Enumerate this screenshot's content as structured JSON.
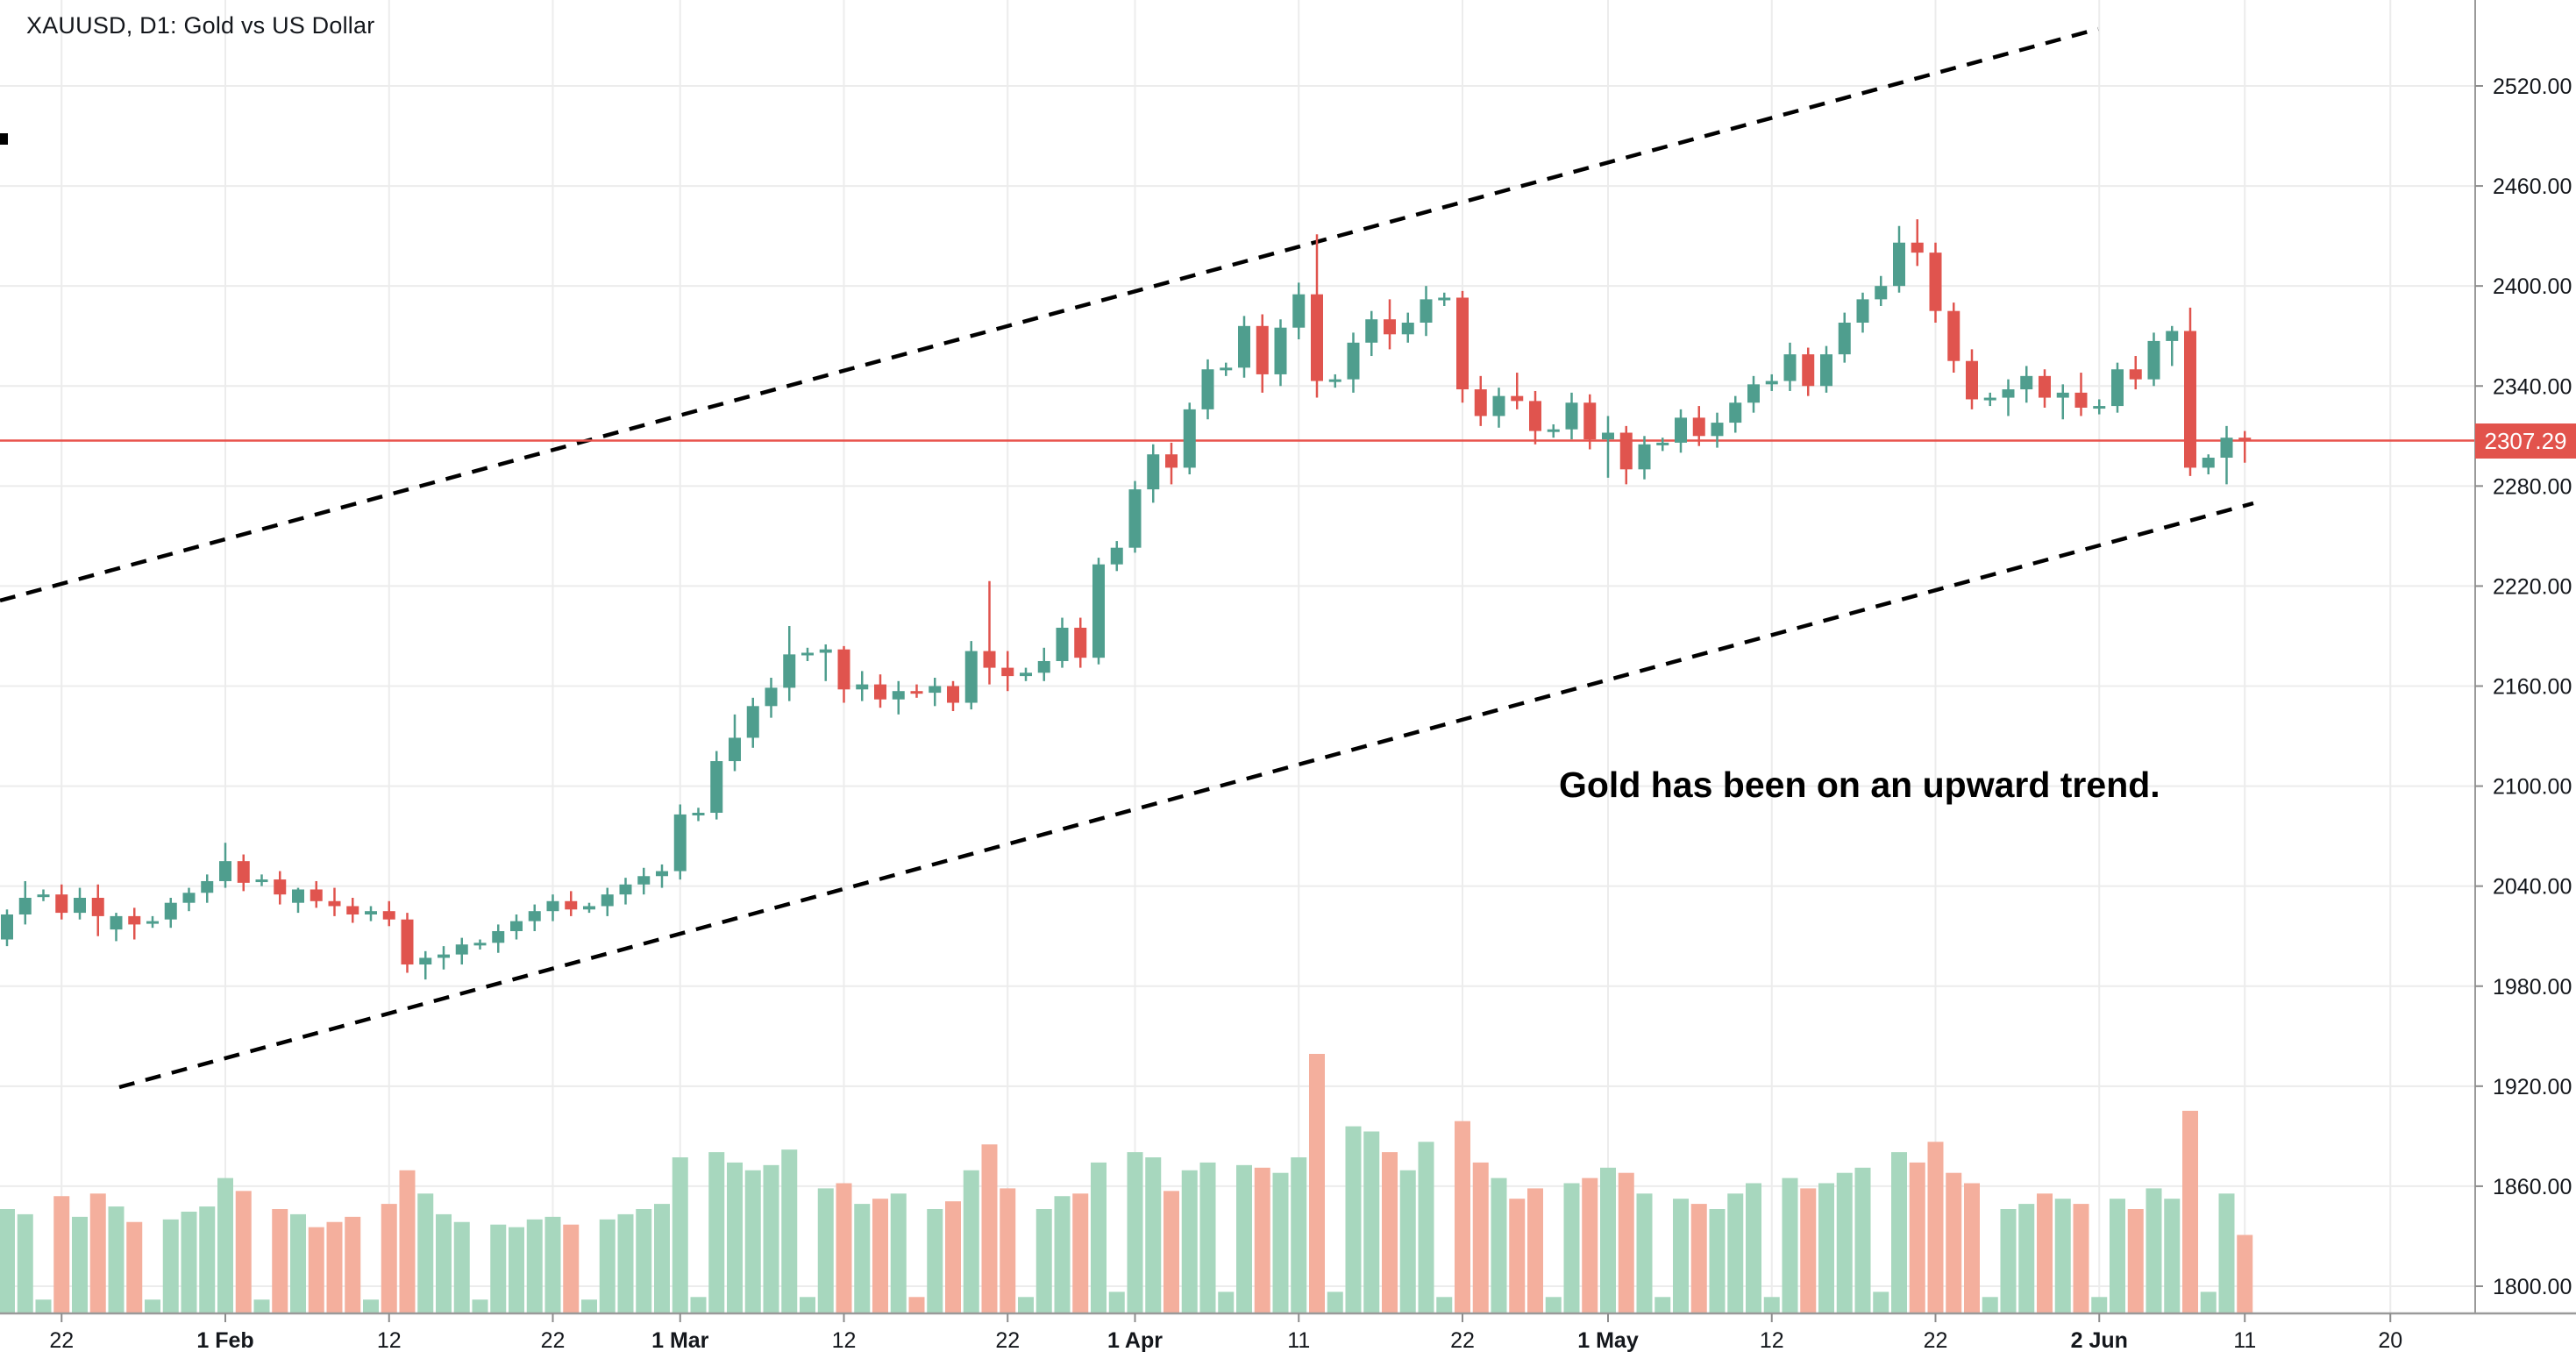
{
  "header": {
    "title": "XAUUSD, D1: Gold vs US Dollar"
  },
  "annotation": {
    "text": "Gold has been on an upward trend."
  },
  "price_axis": {
    "current": {
      "text": "2307.29",
      "value": 2307.29
    },
    "labels": [
      {
        "text": "2520.00",
        "value": 2520
      },
      {
        "text": "2460.00",
        "value": 2460
      },
      {
        "text": "2400.00",
        "value": 2400
      },
      {
        "text": "2340.00",
        "value": 2340
      },
      {
        "text": "2280.00",
        "value": 2280
      },
      {
        "text": "2220.00",
        "value": 2220
      },
      {
        "text": "2160.00",
        "value": 2160
      },
      {
        "text": "2100.00",
        "value": 2100
      },
      {
        "text": "2040.00",
        "value": 2040
      },
      {
        "text": "1980.00",
        "value": 1980
      },
      {
        "text": "1920.00",
        "value": 1920
      },
      {
        "text": "1860.00",
        "value": 1860
      },
      {
        "text": "1800.00",
        "value": 1800
      }
    ]
  },
  "time_axis": {
    "ticks": [
      {
        "label": "22",
        "index": 3,
        "bold": false
      },
      {
        "label": "1 Feb",
        "index": 12,
        "bold": true
      },
      {
        "label": "12",
        "index": 21,
        "bold": false
      },
      {
        "label": "22",
        "index": 30,
        "bold": false
      },
      {
        "label": "1 Mar",
        "index": 37,
        "bold": true
      },
      {
        "label": "12",
        "index": 46,
        "bold": false
      },
      {
        "label": "22",
        "index": 55,
        "bold": false
      },
      {
        "label": "1 Apr",
        "index": 62,
        "bold": true
      },
      {
        "label": "11",
        "index": 71,
        "bold": false
      },
      {
        "label": "22",
        "index": 80,
        "bold": false
      },
      {
        "label": "1 May",
        "index": 88,
        "bold": true
      },
      {
        "label": "12",
        "index": 97,
        "bold": false
      },
      {
        "label": "22",
        "index": 106,
        "bold": false
      },
      {
        "label": "2 Jun",
        "index": 115,
        "bold": true
      },
      {
        "label": "11",
        "index": 123,
        "bold": false
      },
      {
        "label": "20",
        "index": 131,
        "bold": false
      }
    ]
  },
  "chart_data": {
    "type": "candlestick",
    "title": "XAUUSD, D1: Gold vs US Dollar",
    "series_note": "OHLC + volume per bar, Sundays appear as tiny-volume bars",
    "ylim": [
      1790,
      2560
    ],
    "grid": true,
    "colors": {
      "up": "#4F9E8E",
      "down": "#E0544E",
      "vol_up": "#A7D7BE",
      "vol_down": "#F4AF9D",
      "grid": "#ECECEC",
      "axis": "#9A9A9A",
      "tick": "#8C8C8C",
      "price_line": "#E8524C",
      "badge": "#E2534C",
      "text": "#14171c",
      "trendline": "#000000"
    },
    "candles": [
      [
        2008,
        2026,
        2004,
        2023,
        40
      ],
      [
        2023,
        2043,
        2017,
        2033,
        38
      ],
      [
        2034,
        2038,
        2031,
        2035,
        5
      ],
      [
        2035,
        2041,
        2020,
        2024,
        45
      ],
      [
        2024,
        2039,
        2020,
        2033,
        37
      ],
      [
        2033,
        2041,
        2010,
        2022,
        46
      ],
      [
        2014,
        2024,
        2007,
        2022,
        41
      ],
      [
        2022,
        2027,
        2008,
        2017,
        35
      ],
      [
        2018,
        2022,
        2015,
        2019,
        5
      ],
      [
        2020,
        2033,
        2015,
        2030,
        36
      ],
      [
        2030,
        2039,
        2025,
        2036,
        39
      ],
      [
        2036,
        2047,
        2030,
        2043,
        41
      ],
      [
        2043,
        2066,
        2039,
        2055,
        52
      ],
      [
        2055,
        2059,
        2037,
        2042,
        47
      ],
      [
        2043,
        2047,
        2040,
        2044,
        5
      ],
      [
        2044,
        2049,
        2029,
        2035,
        40
      ],
      [
        2030,
        2039,
        2024,
        2038,
        38
      ],
      [
        2038,
        2043,
        2027,
        2031,
        33
      ],
      [
        2031,
        2039,
        2022,
        2028,
        35
      ],
      [
        2028,
        2033,
        2018,
        2023,
        37
      ],
      [
        2023,
        2028,
        2019,
        2025,
        5
      ],
      [
        2025,
        2031,
        2016,
        2020,
        42
      ],
      [
        2020,
        2024,
        1988,
        1993,
        55
      ],
      [
        1993,
        2001,
        1984,
        1997,
        46
      ],
      [
        1997,
        2004,
        1990,
        1999,
        38
      ],
      [
        1999,
        2009,
        1993,
        2005,
        35
      ],
      [
        2005,
        2008,
        2002,
        2006,
        5
      ],
      [
        2006,
        2017,
        2000,
        2013,
        34
      ],
      [
        2013,
        2023,
        2008,
        2019,
        33
      ],
      [
        2019,
        2029,
        2013,
        2025,
        36
      ],
      [
        2025,
        2035,
        2019,
        2031,
        37
      ],
      [
        2031,
        2037,
        2022,
        2026,
        34
      ],
      [
        2026,
        2030,
        2024,
        2028,
        5
      ],
      [
        2028,
        2039,
        2022,
        2035,
        36
      ],
      [
        2035,
        2045,
        2029,
        2041,
        38
      ],
      [
        2041,
        2051,
        2035,
        2046,
        40
      ],
      [
        2046,
        2053,
        2039,
        2049,
        42
      ],
      [
        2049,
        2089,
        2044,
        2083,
        60
      ],
      [
        2083,
        2087,
        2079,
        2084,
        6
      ],
      [
        2084,
        2121,
        2080,
        2115,
        62
      ],
      [
        2115,
        2143,
        2109,
        2129,
        58
      ],
      [
        2129,
        2153,
        2123,
        2148,
        55
      ],
      [
        2148,
        2165,
        2141,
        2159,
        57
      ],
      [
        2159,
        2196,
        2151,
        2179,
        63
      ],
      [
        2179,
        2183,
        2175,
        2180,
        6
      ],
      [
        2180,
        2185,
        2163,
        2182,
        48
      ],
      [
        2182,
        2184,
        2150,
        2158,
        50
      ],
      [
        2158,
        2169,
        2151,
        2161,
        42
      ],
      [
        2161,
        2167,
        2147,
        2152,
        44
      ],
      [
        2152,
        2163,
        2143,
        2157,
        46
      ],
      [
        2157,
        2161,
        2153,
        2156,
        6
      ],
      [
        2156,
        2165,
        2148,
        2160,
        40
      ],
      [
        2160,
        2163,
        2145,
        2150,
        43
      ],
      [
        2150,
        2187,
        2146,
        2181,
        55
      ],
      [
        2181,
        2223,
        2161,
        2171,
        65
      ],
      [
        2171,
        2181,
        2157,
        2166,
        48
      ],
      [
        2166,
        2171,
        2163,
        2168,
        6
      ],
      [
        2168,
        2183,
        2163,
        2175,
        40
      ],
      [
        2175,
        2201,
        2171,
        2195,
        45
      ],
      [
        2195,
        2201,
        2171,
        2177,
        46
      ],
      [
        2177,
        2237,
        2173,
        2233,
        58
      ],
      [
        2233,
        2247,
        2229,
        2243,
        8
      ],
      [
        2243,
        2283,
        2240,
        2278,
        62
      ],
      [
        2278,
        2305,
        2270,
        2299,
        60
      ],
      [
        2299,
        2306,
        2281,
        2291,
        47
      ],
      [
        2291,
        2330,
        2287,
        2326,
        55
      ],
      [
        2326,
        2356,
        2320,
        2350,
        58
      ],
      [
        2350,
        2354,
        2346,
        2351,
        8
      ],
      [
        2351,
        2382,
        2345,
        2376,
        57
      ],
      [
        2376,
        2383,
        2336,
        2347,
        56
      ],
      [
        2347,
        2380,
        2340,
        2375,
        54
      ],
      [
        2375,
        2402,
        2368,
        2395,
        60
      ],
      [
        2395,
        2431,
        2333,
        2343,
        100
      ],
      [
        2343,
        2347,
        2339,
        2344,
        8
      ],
      [
        2344,
        2372,
        2336,
        2366,
        72
      ],
      [
        2366,
        2385,
        2358,
        2380,
        70
      ],
      [
        2380,
        2392,
        2362,
        2371,
        62
      ],
      [
        2371,
        2384,
        2366,
        2378,
        55
      ],
      [
        2378,
        2400,
        2370,
        2392,
        66
      ],
      [
        2392,
        2396,
        2388,
        2393,
        6
      ],
      [
        2393,
        2397,
        2330,
        2338,
        74
      ],
      [
        2338,
        2346,
        2316,
        2322,
        58
      ],
      [
        2322,
        2339,
        2315,
        2334,
        52
      ],
      [
        2334,
        2348,
        2326,
        2331,
        44
      ],
      [
        2331,
        2337,
        2305,
        2313,
        48
      ],
      [
        2313,
        2317,
        2309,
        2314,
        6
      ],
      [
        2314,
        2336,
        2308,
        2330,
        50
      ],
      [
        2330,
        2335,
        2302,
        2308,
        52
      ],
      [
        2308,
        2322,
        2285,
        2312,
        56
      ],
      [
        2312,
        2316,
        2281,
        2290,
        54
      ],
      [
        2290,
        2310,
        2284,
        2305,
        46
      ],
      [
        2305,
        2309,
        2301,
        2306,
        6
      ],
      [
        2306,
        2326,
        2300,
        2321,
        44
      ],
      [
        2321,
        2328,
        2304,
        2310,
        42
      ],
      [
        2310,
        2324,
        2303,
        2318,
        40
      ],
      [
        2318,
        2334,
        2312,
        2330,
        46
      ],
      [
        2330,
        2346,
        2324,
        2341,
        50
      ],
      [
        2341,
        2347,
        2337,
        2343,
        6
      ],
      [
        2343,
        2366,
        2337,
        2359,
        52
      ],
      [
        2359,
        2363,
        2334,
        2340,
        48
      ],
      [
        2340,
        2364,
        2336,
        2359,
        50
      ],
      [
        2359,
        2384,
        2354,
        2378,
        54
      ],
      [
        2378,
        2396,
        2372,
        2392,
        56
      ],
      [
        2392,
        2406,
        2388,
        2400,
        8
      ],
      [
        2400,
        2436,
        2396,
        2426,
        62
      ],
      [
        2426,
        2440,
        2412,
        2420,
        58
      ],
      [
        2420,
        2426,
        2378,
        2385,
        66
      ],
      [
        2385,
        2390,
        2348,
        2355,
        54
      ],
      [
        2355,
        2362,
        2326,
        2332,
        50
      ],
      [
        2332,
        2336,
        2328,
        2333,
        6
      ],
      [
        2333,
        2344,
        2322,
        2338,
        40
      ],
      [
        2338,
        2352,
        2330,
        2346,
        42
      ],
      [
        2346,
        2350,
        2327,
        2333,
        46
      ],
      [
        2333,
        2341,
        2320,
        2336,
        44
      ],
      [
        2336,
        2348,
        2322,
        2327,
        42
      ],
      [
        2327,
        2332,
        2323,
        2328,
        6
      ],
      [
        2328,
        2354,
        2324,
        2350,
        44
      ],
      [
        2350,
        2358,
        2338,
        2344,
        40
      ],
      [
        2344,
        2372,
        2340,
        2367,
        48
      ],
      [
        2367,
        2376,
        2352,
        2373,
        44
      ],
      [
        2373,
        2387,
        2286,
        2291,
        78
      ],
      [
        2291,
        2299,
        2287,
        2297,
        8
      ],
      [
        2297,
        2316,
        2281,
        2309,
        46
      ],
      [
        2309,
        2313,
        2294,
        2307,
        30
      ]
    ],
    "trendlines": [
      {
        "name": "upper-channel-line",
        "x1": 0,
        "y1": 685,
        "x2": 2393,
        "y2": 33
      },
      {
        "name": "lower-channel-line",
        "x1": 136,
        "y1": 1240,
        "x2": 2570,
        "y2": 574
      }
    ],
    "current_price": 2307.29
  }
}
